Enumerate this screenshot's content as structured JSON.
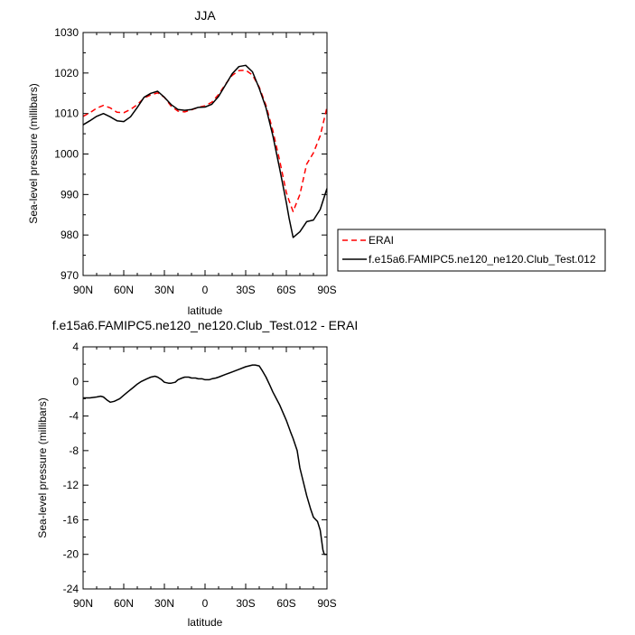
{
  "chart_data": [
    {
      "type": "line",
      "title": "JJA",
      "xlabel": "latitude",
      "ylabel": "Sea-level pressure (millibars)",
      "xlim": [
        90,
        -90
      ],
      "ylim": [
        970,
        1030
      ],
      "x_ticks": [
        90,
        60,
        30,
        0,
        -30,
        -60,
        -90
      ],
      "x_tick_labels": [
        "90N",
        "60N",
        "30N",
        "0",
        "30S",
        "60S",
        "90S"
      ],
      "y_ticks": [
        970,
        980,
        990,
        1000,
        1010,
        1020,
        1030
      ],
      "y_tick_labels": [
        "970",
        "980",
        "990",
        "1000",
        "1010",
        "1020",
        "1030"
      ],
      "grid": false,
      "legend_position": "right, outside plot",
      "x": [
        90,
        85,
        80,
        75,
        70,
        65,
        60,
        55,
        50,
        45,
        40,
        35,
        30,
        25,
        20,
        15,
        10,
        5,
        0,
        -5,
        -10,
        -15,
        -20,
        -25,
        -30,
        -35,
        -40,
        -45,
        -50,
        -55,
        -60,
        -62,
        -65,
        -70,
        -75,
        -80,
        -85,
        -90
      ],
      "series": [
        {
          "name": "ERAI",
          "color": "#ff0000",
          "dash": "dashed",
          "values": [
            1009.3,
            1010.2,
            1011.3,
            1012.0,
            1011.4,
            1010.3,
            1010.2,
            1011.0,
            1012.2,
            1013.8,
            1014.6,
            1015.1,
            1014.0,
            1011.8,
            1010.6,
            1010.4,
            1010.9,
            1011.5,
            1011.9,
            1012.8,
            1014.7,
            1017.2,
            1019.4,
            1020.6,
            1020.7,
            1019.5,
            1016.5,
            1012.0,
            1005.8,
            998.5,
            990.5,
            988.5,
            985.8,
            990.0,
            997.5,
            1000.3,
            1004.5,
            1011.5
          ]
        },
        {
          "name": "f.e15a6.FAMIPC5.ne120_ne120.Club_Test.012",
          "color": "#000000",
          "dash": "solid",
          "values": [
            1007.2,
            1008.2,
            1009.3,
            1010.0,
            1009.2,
            1008.2,
            1008.0,
            1009.2,
            1011.5,
            1014.0,
            1015.0,
            1015.5,
            1014.0,
            1012.2,
            1011.0,
            1010.8,
            1011.0,
            1011.5,
            1011.6,
            1012.3,
            1014.2,
            1017.0,
            1019.8,
            1021.6,
            1021.9,
            1020.3,
            1016.2,
            1011.4,
            1004.6,
            996.5,
            988.0,
            984.2,
            979.4,
            980.8,
            983.3,
            983.7,
            986.3,
            991.5
          ]
        }
      ]
    },
    {
      "type": "line",
      "title": "f.e15a6.FAMIPC5.ne120_ne120.Club_Test.012 - ERAI",
      "xlabel": "latitude",
      "ylabel": "Sea-level pressure (millibars)",
      "xlim": [
        90,
        -90
      ],
      "ylim": [
        -24,
        4
      ],
      "x_ticks": [
        90,
        60,
        30,
        0,
        -30,
        -60,
        -90
      ],
      "x_tick_labels": [
        "90N",
        "60N",
        "30N",
        "0",
        "30S",
        "60S",
        "90S"
      ],
      "y_ticks": [
        -24,
        -20,
        -16,
        -12,
        -8,
        -4,
        0,
        4
      ],
      "y_tick_labels": [
        "-24",
        "-20",
        "-16",
        "-12",
        "-8",
        "-4",
        "0",
        "4"
      ],
      "grid": false,
      "series": [
        {
          "color": "#000000",
          "x": [
            90,
            85,
            80,
            77,
            75,
            72,
            70,
            67,
            63,
            60,
            57,
            53,
            50,
            47,
            43,
            40,
            37,
            35,
            32,
            30,
            27,
            25,
            22,
            20,
            17,
            15,
            12,
            10,
            7,
            5,
            2,
            0,
            -3,
            -5,
            -8,
            -10,
            -15,
            -20,
            -25,
            -30,
            -35,
            -37,
            -40,
            -42,
            -45,
            -48,
            -50,
            -55,
            -60,
            -63,
            -65,
            -68,
            -70,
            -75,
            -78,
            -80,
            -83,
            -85,
            -87,
            -88,
            -90
          ],
          "values": [
            -1.9,
            -1.9,
            -1.8,
            -1.7,
            -1.8,
            -2.2,
            -2.4,
            -2.3,
            -2.0,
            -1.6,
            -1.2,
            -0.7,
            -0.3,
            0.0,
            0.3,
            0.5,
            0.6,
            0.5,
            0.2,
            -0.1,
            -0.2,
            -0.2,
            -0.1,
            0.2,
            0.4,
            0.5,
            0.5,
            0.4,
            0.4,
            0.3,
            0.3,
            0.2,
            0.2,
            0.3,
            0.4,
            0.5,
            0.8,
            1.1,
            1.4,
            1.7,
            1.9,
            1.9,
            1.8,
            1.3,
            0.5,
            -0.5,
            -1.2,
            -2.7,
            -4.5,
            -5.8,
            -6.6,
            -8.0,
            -10.0,
            -13.2,
            -14.8,
            -15.7,
            -16.2,
            -17.2,
            -19.5,
            -20.0,
            -20.0
          ]
        }
      ]
    }
  ]
}
